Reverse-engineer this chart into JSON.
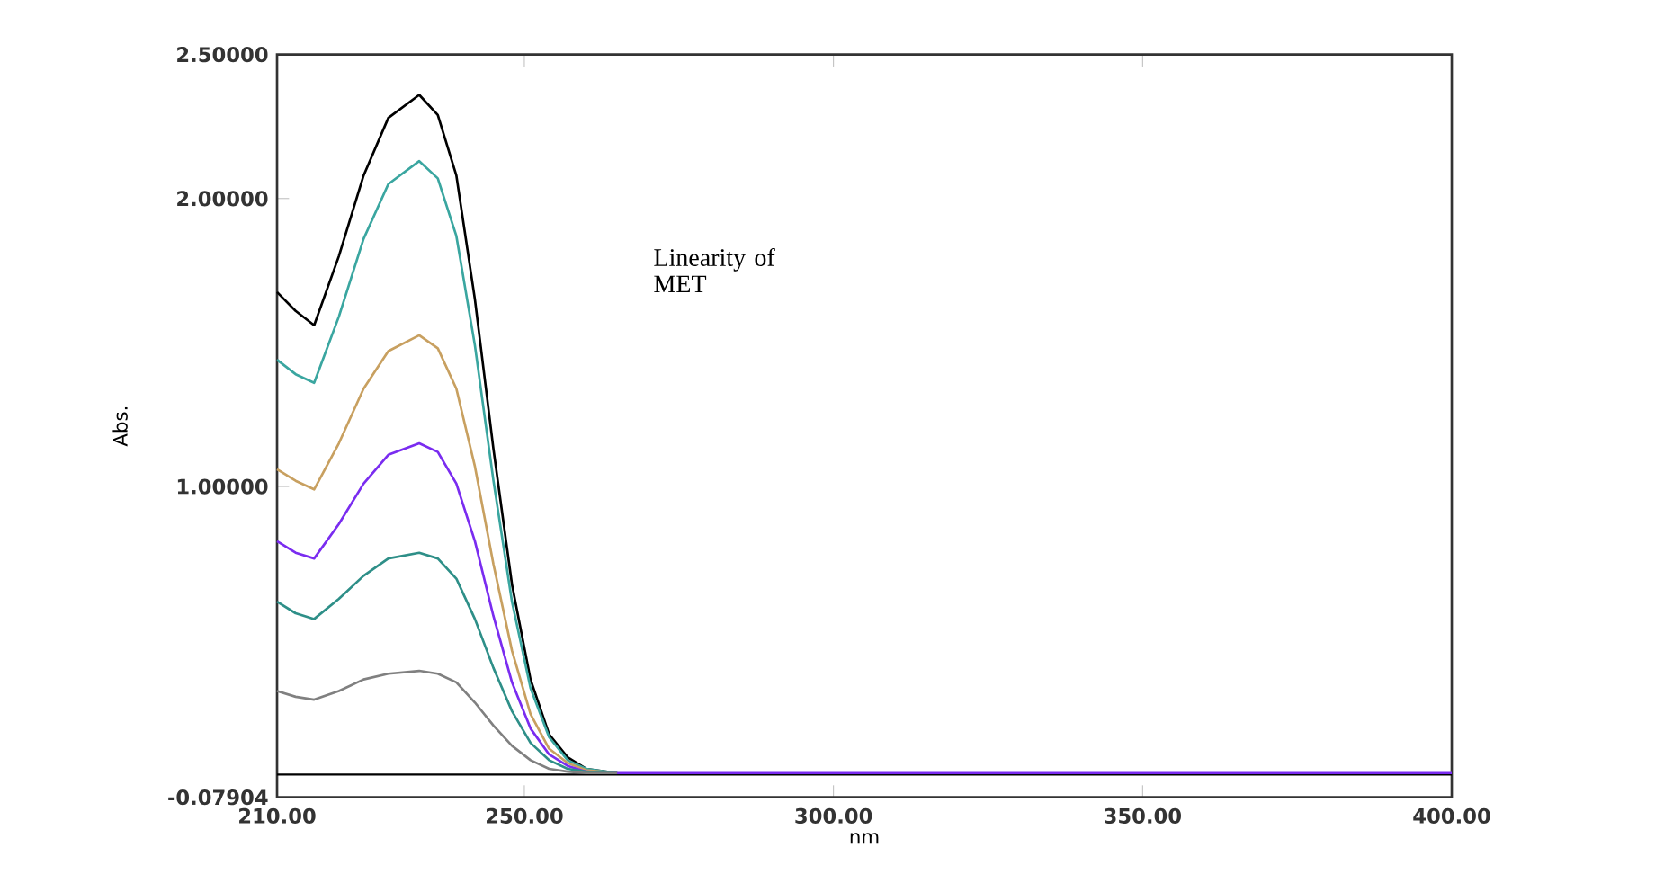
{
  "chart_data": {
    "type": "line",
    "xlabel": "nm",
    "ylabel": "Abs.",
    "annotations": [
      "Linearity of MET"
    ],
    "x": [
      210,
      213,
      216,
      220,
      224,
      228,
      233,
      236,
      239,
      242,
      245,
      248,
      251,
      254,
      257,
      260,
      265,
      270,
      400
    ],
    "xlim": [
      210,
      400
    ],
    "ylim": [
      -0.07904,
      2.5
    ],
    "xticks": [
      {
        "value": 210,
        "label": "210.00"
      },
      {
        "value": 250,
        "label": "250.00"
      },
      {
        "value": 300,
        "label": "300.00"
      },
      {
        "value": 350,
        "label": "350.00"
      },
      {
        "value": 400,
        "label": "400.00"
      }
    ],
    "yticks": [
      {
        "value": -0.07904,
        "label": "-0.07904"
      },
      {
        "value": 1,
        "label": "1.00000"
      },
      {
        "value": 2,
        "label": "2.00000"
      },
      {
        "value": 2.5,
        "label": "2.50000"
      }
    ],
    "marker": "none",
    "line_style": "solid",
    "grid": false,
    "ref_lines": [
      {
        "axis": "y",
        "value": 0,
        "color": "#000000"
      }
    ],
    "series": [
      {
        "color": "#000000",
        "values": [
          1.675,
          1.61,
          1.56,
          1.8,
          2.08,
          2.28,
          2.36,
          2.29,
          2.08,
          1.65,
          1.13,
          0.66,
          0.33,
          0.14,
          0.06,
          0.02,
          0.005,
          null,
          null
        ]
      },
      {
        "color": "#3aa6a0",
        "values": [
          1.44,
          1.39,
          1.36,
          1.59,
          1.86,
          2.05,
          2.13,
          2.07,
          1.87,
          1.49,
          1.02,
          0.6,
          0.3,
          0.13,
          0.05,
          0.02,
          0.005,
          null,
          null
        ]
      },
      {
        "color": "#c8a060",
        "values": [
          1.06,
          1.02,
          0.99,
          1.15,
          1.34,
          1.47,
          1.525,
          1.48,
          1.34,
          1.07,
          0.73,
          0.43,
          0.21,
          0.09,
          0.04,
          0.015,
          0.005,
          null,
          null
        ]
      },
      {
        "color": "#7a2cf0",
        "values": [
          0.81,
          0.77,
          0.75,
          0.87,
          1.01,
          1.11,
          1.15,
          1.12,
          1.01,
          0.81,
          0.55,
          0.32,
          0.16,
          0.07,
          0.03,
          0.01,
          0.005,
          0.005,
          0.005
        ]
      },
      {
        "color": "#2e8f88",
        "values": [
          0.6,
          0.56,
          0.54,
          0.61,
          0.69,
          0.75,
          0.77,
          0.75,
          0.68,
          0.54,
          0.37,
          0.22,
          0.11,
          0.05,
          0.02,
          0.01,
          0.005,
          null,
          null
        ]
      },
      {
        "color": "#808080",
        "values": [
          0.29,
          0.27,
          0.26,
          0.29,
          0.33,
          0.35,
          0.36,
          0.35,
          0.32,
          0.25,
          0.17,
          0.1,
          0.05,
          0.02,
          0.01,
          0.005,
          0.005,
          null,
          null
        ]
      }
    ]
  }
}
